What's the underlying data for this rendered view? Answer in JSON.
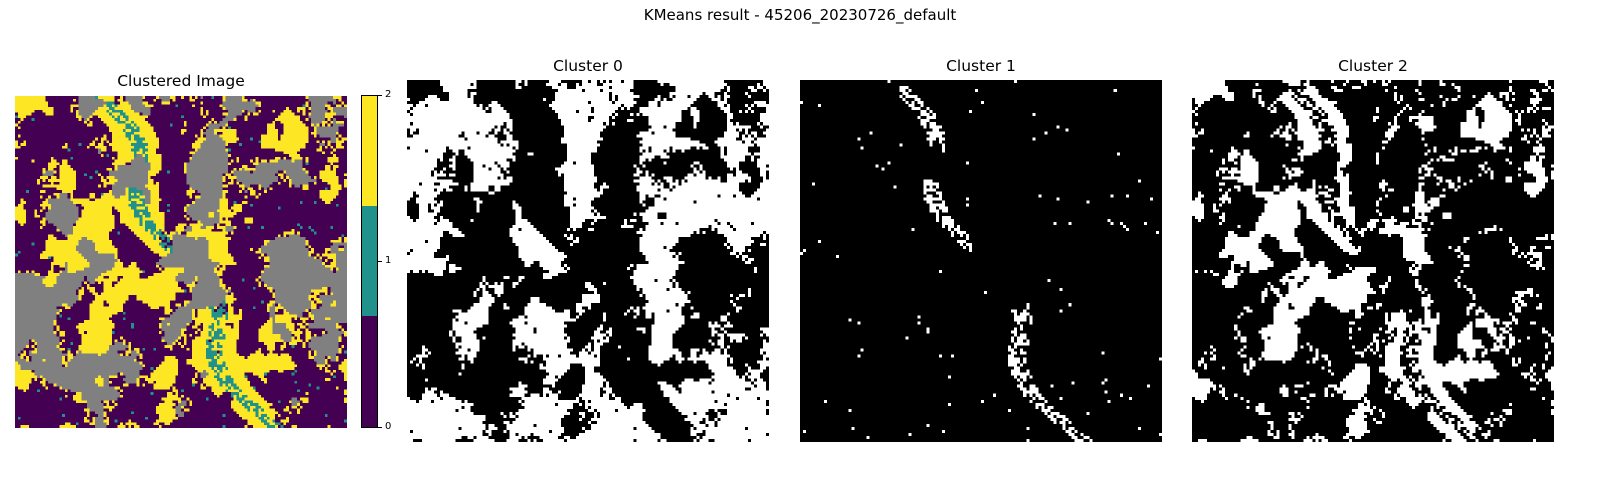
{
  "figure": {
    "suptitle": "KMeans result - 45206_20230726_default"
  },
  "chart_data": [
    {
      "type": "heatmap",
      "title": "Clustered Image",
      "colormap": "viridis",
      "nodata_color": "#808080",
      "cluster_colors": [
        "#440154",
        "#21918c",
        "#fde725"
      ],
      "colorbar": {
        "range": [
          0,
          2
        ],
        "ticks": [
          "0",
          "1",
          "2"
        ]
      },
      "axes": "off"
    },
    {
      "type": "heatmap",
      "title": "Cluster 0",
      "colors": {
        "member": "#ffffff",
        "other": "#000000"
      },
      "axes": "off"
    },
    {
      "type": "heatmap",
      "title": "Cluster 1",
      "colors": {
        "member": "#ffffff",
        "other": "#000000"
      },
      "axes": "off"
    },
    {
      "type": "heatmap",
      "title": "Cluster 2",
      "colors": {
        "member": "#ffffff",
        "other": "#000000"
      },
      "axes": "off"
    }
  ]
}
